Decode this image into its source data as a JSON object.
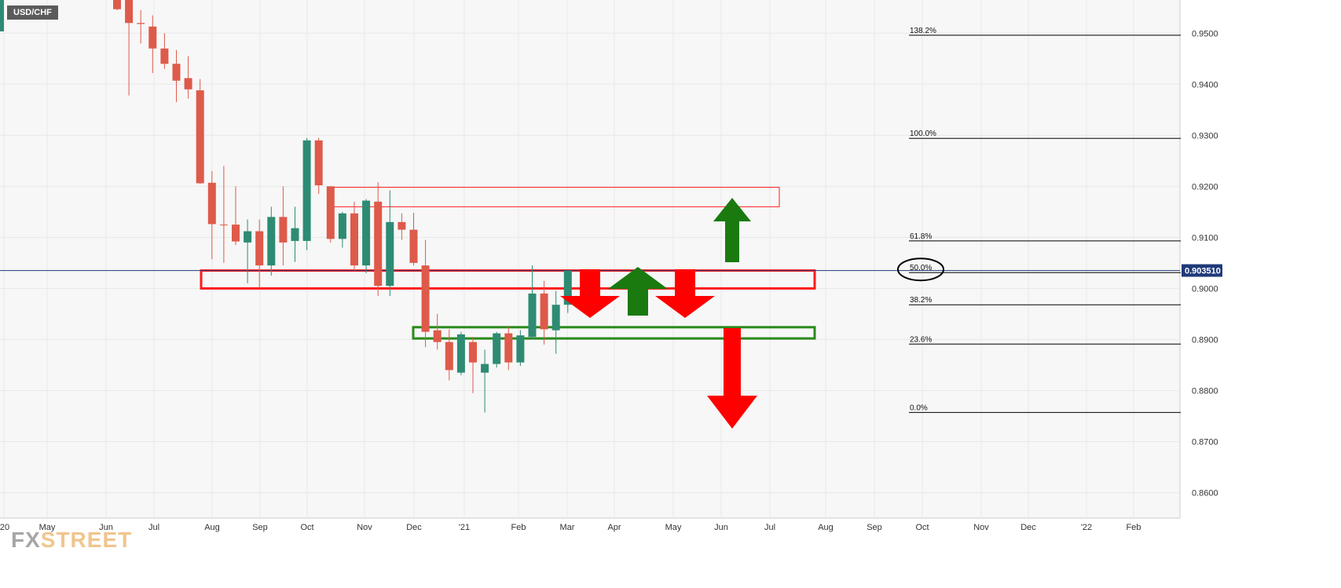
{
  "symbol": "USD/CHF",
  "logo": {
    "part1": "FX",
    "part2": "STREET"
  },
  "colors": {
    "up": "#2e8b73",
    "down": "#de5a4a",
    "grid": "#e8e8e8",
    "background": "#f7f7f7",
    "price_line": "#1f3a7a",
    "price_tag_bg": "#1f3a7a",
    "zone_red": "#ff1a1a",
    "zone_green": "#2a8a1a",
    "arrow_red": "#ff0000",
    "arrow_green": "#1a7a10",
    "fib_line": "#000000"
  },
  "chart_data": {
    "type": "candlestick",
    "title": "USD/CHF",
    "timeframe_note": "weekly candles",
    "ylim": [
      0.855,
      0.9565
    ],
    "y_ticks": [
      "0.9500",
      "0.9400",
      "0.9300",
      "0.9200",
      "0.9100",
      "0.9000",
      "0.8900",
      "0.8800",
      "0.8700",
      "0.8600"
    ],
    "x_ticks": [
      "'20",
      "May",
      "Jun",
      "Jul",
      "Aug",
      "Sep",
      "Oct",
      "Nov",
      "Dec",
      "'21",
      "Feb",
      "Mar",
      "Apr",
      "May",
      "Jun",
      "Jul",
      "Aug",
      "Sep",
      "Oct",
      "Nov",
      "Dec",
      "'22",
      "Feb"
    ],
    "current_price": "0.903510",
    "current_price_value": 0.90351,
    "candles": [
      {
        "o": 0.9565,
        "h": 0.9565,
        "l": 0.9545,
        "c": 0.9547
      },
      {
        "o": 0.9565,
        "h": 0.9565,
        "l": 0.9378,
        "c": 0.952
      },
      {
        "o": 0.952,
        "h": 0.9545,
        "l": 0.948,
        "c": 0.9518
      },
      {
        "o": 0.9513,
        "h": 0.9535,
        "l": 0.9422,
        "c": 0.947
      },
      {
        "o": 0.947,
        "h": 0.95,
        "l": 0.943,
        "c": 0.944
      },
      {
        "o": 0.944,
        "h": 0.9467,
        "l": 0.9365,
        "c": 0.9407
      },
      {
        "o": 0.9412,
        "h": 0.9455,
        "l": 0.9372,
        "c": 0.939
      },
      {
        "o": 0.9388,
        "h": 0.941,
        "l": 0.9205,
        "c": 0.9206
      },
      {
        "o": 0.9207,
        "h": 0.923,
        "l": 0.9057,
        "c": 0.9126
      },
      {
        "o": 0.9125,
        "h": 0.924,
        "l": 0.905,
        "c": 0.9124
      },
      {
        "o": 0.9125,
        "h": 0.92,
        "l": 0.9085,
        "c": 0.9092
      },
      {
        "o": 0.909,
        "h": 0.9135,
        "l": 0.901,
        "c": 0.9112
      },
      {
        "o": 0.9112,
        "h": 0.9135,
        "l": 0.9,
        "c": 0.9045
      },
      {
        "o": 0.9045,
        "h": 0.916,
        "l": 0.9025,
        "c": 0.914
      },
      {
        "o": 0.914,
        "h": 0.92,
        "l": 0.9045,
        "c": 0.909
      },
      {
        "o": 0.9093,
        "h": 0.916,
        "l": 0.9052,
        "c": 0.9118
      },
      {
        "o": 0.9093,
        "h": 0.9295,
        "l": 0.9075,
        "c": 0.929
      },
      {
        "o": 0.929,
        "h": 0.9295,
        "l": 0.9185,
        "c": 0.9202
      },
      {
        "o": 0.92,
        "h": 0.92,
        "l": 0.909,
        "c": 0.9097
      },
      {
        "o": 0.9097,
        "h": 0.915,
        "l": 0.908,
        "c": 0.9147
      },
      {
        "o": 0.9147,
        "h": 0.917,
        "l": 0.9035,
        "c": 0.9045
      },
      {
        "o": 0.9045,
        "h": 0.9175,
        "l": 0.903,
        "c": 0.9172
      },
      {
        "o": 0.917,
        "h": 0.9208,
        "l": 0.8985,
        "c": 0.9005
      },
      {
        "o": 0.9005,
        "h": 0.9192,
        "l": 0.8985,
        "c": 0.913
      },
      {
        "o": 0.913,
        "h": 0.9147,
        "l": 0.9095,
        "c": 0.9115
      },
      {
        "o": 0.9115,
        "h": 0.9148,
        "l": 0.9045,
        "c": 0.905
      },
      {
        "o": 0.9045,
        "h": 0.9095,
        "l": 0.8885,
        "c": 0.8915
      },
      {
        "o": 0.8918,
        "h": 0.895,
        "l": 0.888,
        "c": 0.8895
      },
      {
        "o": 0.8895,
        "h": 0.892,
        "l": 0.882,
        "c": 0.884
      },
      {
        "o": 0.8835,
        "h": 0.8915,
        "l": 0.883,
        "c": 0.891
      },
      {
        "o": 0.8895,
        "h": 0.8905,
        "l": 0.8795,
        "c": 0.8855
      },
      {
        "o": 0.8835,
        "h": 0.888,
        "l": 0.8757,
        "c": 0.8852
      },
      {
        "o": 0.8852,
        "h": 0.8915,
        "l": 0.8845,
        "c": 0.8912
      },
      {
        "o": 0.8912,
        "h": 0.8925,
        "l": 0.884,
        "c": 0.8855
      },
      {
        "o": 0.8855,
        "h": 0.8918,
        "l": 0.8848,
        "c": 0.8908
      },
      {
        "o": 0.8905,
        "h": 0.9045,
        "l": 0.89,
        "c": 0.899
      },
      {
        "o": 0.899,
        "h": 0.9015,
        "l": 0.889,
        "c": 0.892
      },
      {
        "o": 0.8918,
        "h": 0.8995,
        "l": 0.8872,
        "c": 0.8968
      },
      {
        "o": 0.8968,
        "h": 0.9035,
        "l": 0.8952,
        "c": 0.9035
      }
    ],
    "fib_levels": [
      {
        "label": "138.2%",
        "value": 0.9496
      },
      {
        "label": "100.0%",
        "value": 0.9294
      },
      {
        "label": "61.8%",
        "value": 0.9093
      },
      {
        "label": "50.0%",
        "value": 0.9031
      },
      {
        "label": "38.2%",
        "value": 0.8968
      },
      {
        "label": "23.6%",
        "value": 0.8891
      },
      {
        "label": "0.0%",
        "value": 0.8757
      }
    ],
    "annotations": {
      "zones": [
        {
          "color": "red",
          "low": 0.916,
          "high": 0.9198
        },
        {
          "color": "red",
          "low": 0.9,
          "high": 0.9035
        },
        {
          "color": "green",
          "low": 0.8902,
          "high": 0.8924
        }
      ],
      "arrows": [
        {
          "dir": "down",
          "color": "red"
        },
        {
          "dir": "up",
          "color": "green"
        },
        {
          "dir": "down",
          "color": "red"
        },
        {
          "dir": "up",
          "color": "green"
        },
        {
          "dir": "down",
          "color": "red"
        }
      ],
      "highlighted_level": "50.0%"
    }
  }
}
